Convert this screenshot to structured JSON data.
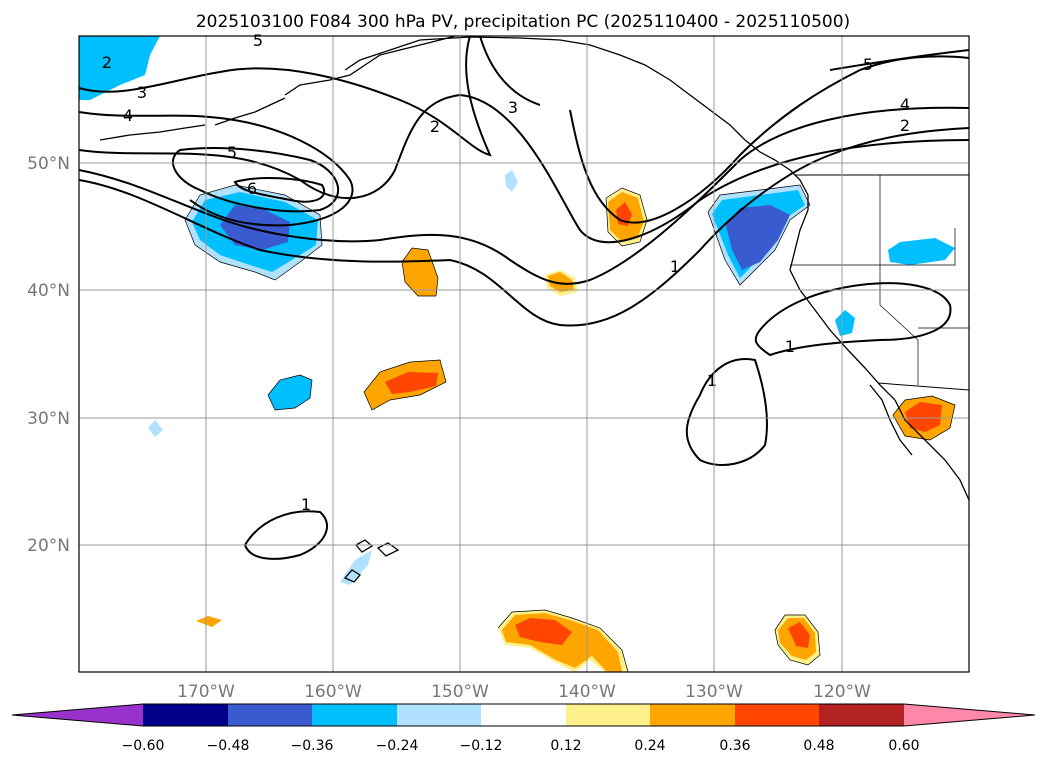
{
  "title": "2025103100 F084 300 hPa PV, precipitation PC (2025110400 - 2025110500)",
  "axes": {
    "lat_labels": [
      "50°N",
      "40°N",
      "30°N",
      "20°N"
    ],
    "lon_labels": [
      "170°W",
      "160°W",
      "150°W",
      "140°W",
      "130°W",
      "120°W"
    ]
  },
  "colorbar": {
    "colors": [
      "#9932cc",
      "#00008b",
      "#3a5bd0",
      "#00bfff",
      "#b0e2ff",
      "#ffffff",
      "#fff08c",
      "#ffa500",
      "#ff4500",
      "#b22222",
      "#ff88aa"
    ],
    "tick_labels": [
      "−0.60",
      "−0.48",
      "−0.36",
      "−0.24",
      "−0.12",
      "0.12",
      "0.24",
      "0.36",
      "0.48",
      "0.60"
    ]
  },
  "contour_labels": {
    "c2_nw": "2",
    "c3_nw": "3",
    "c4_w": "4",
    "c5_w": "5",
    "c6_w": "6",
    "c2_mid": "2",
    "c3_mid": "3",
    "c5_ne": "5",
    "c4_e": "4",
    "c2_e": "2",
    "c1_mid": "1",
    "c1_east": "1",
    "c1_pac": "1",
    "c1_hawaii": "1",
    "c5_top": "5"
  }
}
